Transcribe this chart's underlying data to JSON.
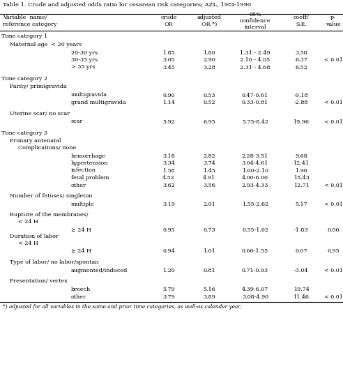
{
  "title": "Table 1. Crude and adjusted odds ratio lor cesarean risk categories; AZL, 198I-1990",
  "footnote": "*) adjusted for all variables in the same and prior time categories, as well-as calender year.",
  "col_headers": {
    "label": "Variable  name/\nreference category",
    "crude": "crude\nOR",
    "adjusted": "adjusted\nOR *)",
    "ci": "95%\nconfidence\ninterval",
    "coeff": "coeff/\nS.E.",
    "pval": "p-\nvalue"
  },
  "rows": [
    {
      "type": "section",
      "text": "Time category 1"
    },
    {
      "type": "subheader1",
      "text": "Maternal age  < 20 years"
    },
    {
      "type": "data",
      "label": "20-30 yrs",
      "crude": "1.85",
      "adjusted": "1.80",
      "ci": "1.31 - 2.49",
      "coeff": "3.58",
      "pval": ""
    },
    {
      "type": "data",
      "label": "30-35 yrs",
      "crude": "3.05",
      "adjusted": "2.90",
      "ci": "2.10 - 4.05",
      "coeff": "6.37",
      "pval": "< 0.01"
    },
    {
      "type": "data",
      "label": "> 35 yrs",
      "crude": "3.45",
      "adjusted": "3.28",
      "ci": "2.31 - 4.68",
      "coeff": "6.52",
      "pval": ""
    },
    {
      "type": "blank"
    },
    {
      "type": "section",
      "text": "Time category 2"
    },
    {
      "type": "subheader1",
      "text": "Parity/ primigravida"
    },
    {
      "type": "data",
      "label": "multigravida",
      "crude": "0.90",
      "adjusted": "0.53",
      "ci": "0.47-0.61",
      "coeff": "-9.18",
      "pval": ""
    },
    {
      "type": "data",
      "label": "grand multigravida",
      "crude": "1.14",
      "adjusted": "0.52",
      "ci": "0.33-0.81",
      "coeff": "-2.88",
      "pval": "< 0.01"
    },
    {
      "type": "blank"
    },
    {
      "type": "subheader1",
      "text": "Uterine scar/ no scar"
    },
    {
      "type": "data",
      "label": "scar",
      "crude": "5.92",
      "adjusted": "6.95",
      "ci": "5.75-8.42",
      "coeff": "19.96",
      "pval": "< 0.01"
    },
    {
      "type": "blank"
    },
    {
      "type": "section",
      "text": "Time category 3"
    },
    {
      "type": "subheader2",
      "text": "Primary antenatal\nComplications/ none"
    },
    {
      "type": "data",
      "label": "hemorrhage",
      "crude": "3.18",
      "adjusted": "2.82",
      "ci": "2.28-3.51",
      "coeff": "9.68",
      "pval": ""
    },
    {
      "type": "data",
      "label": "hypertension",
      "crude": "3.34",
      "adjusted": "3.74",
      "ci": "3.04-4.61",
      "coeff": "12.41",
      "pval": ""
    },
    {
      "type": "data",
      "label": "infection",
      "crude": "1.58",
      "adjusted": "1.45",
      "ci": "1.00-2.10",
      "coeff": "1.96",
      "pval": ""
    },
    {
      "type": "data",
      "label": "fetal problem",
      "crude": "4.52",
      "adjusted": "4.91",
      "ci": "4.00-6.00",
      "coeff": "15.43",
      "pval": ""
    },
    {
      "type": "data",
      "label": "other",
      "crude": "3.62",
      "adjusted": "3.56",
      "ci": "2.93-4.33",
      "coeff": "12.71",
      "pval": "< 0.01"
    },
    {
      "type": "blank"
    },
    {
      "type": "subheader1",
      "text": "Number of fetuses/ singleton"
    },
    {
      "type": "data",
      "label": "multiple",
      "crude": "3.19",
      "adjusted": "2.01",
      "ci": "1.55-2.62",
      "coeff": "5.17",
      "pval": "< 0.01"
    },
    {
      "type": "blank"
    },
    {
      "type": "subheader2",
      "text": "Rupture of the membranes/\n< 24 H"
    },
    {
      "type": "data",
      "label": "≥ 24 H",
      "crude": "0.95",
      "adjusted": "0.73",
      "ci": "0.55-1.02",
      "coeff": "-1.83",
      "pval": "0.06"
    },
    {
      "type": "subheader2",
      "text": "Duration of labor\n< 24 H"
    },
    {
      "type": "data",
      "label": "≥ 24 H",
      "crude": "0.94",
      "adjusted": "1.01",
      "ci": "0.66-1.55",
      "coeff": "0.07",
      "pval": "0.95"
    },
    {
      "type": "blank"
    },
    {
      "type": "subheader1",
      "text": "Type of labor/ no labor/spontan"
    },
    {
      "type": "data",
      "label": "augmented/induced",
      "crude": "1.20",
      "adjusted": "0.81",
      "ci": "0.71-0.93",
      "coeff": "-3.04",
      "pval": "< 0.01"
    },
    {
      "type": "blank"
    },
    {
      "type": "subheader1",
      "text": "Presentation/ vertex"
    },
    {
      "type": "data",
      "label": "breech",
      "crude": "5.79",
      "adjusted": "5.16",
      "ci": "4.39-6.07",
      "coeff": "19.74",
      "pval": ""
    },
    {
      "type": "data",
      "label": "other",
      "crude": "3.79",
      "adjusted": "3.89",
      "ci": "3.08-4.90",
      "coeff": "11.46",
      "pval": "< 0.01"
    }
  ]
}
